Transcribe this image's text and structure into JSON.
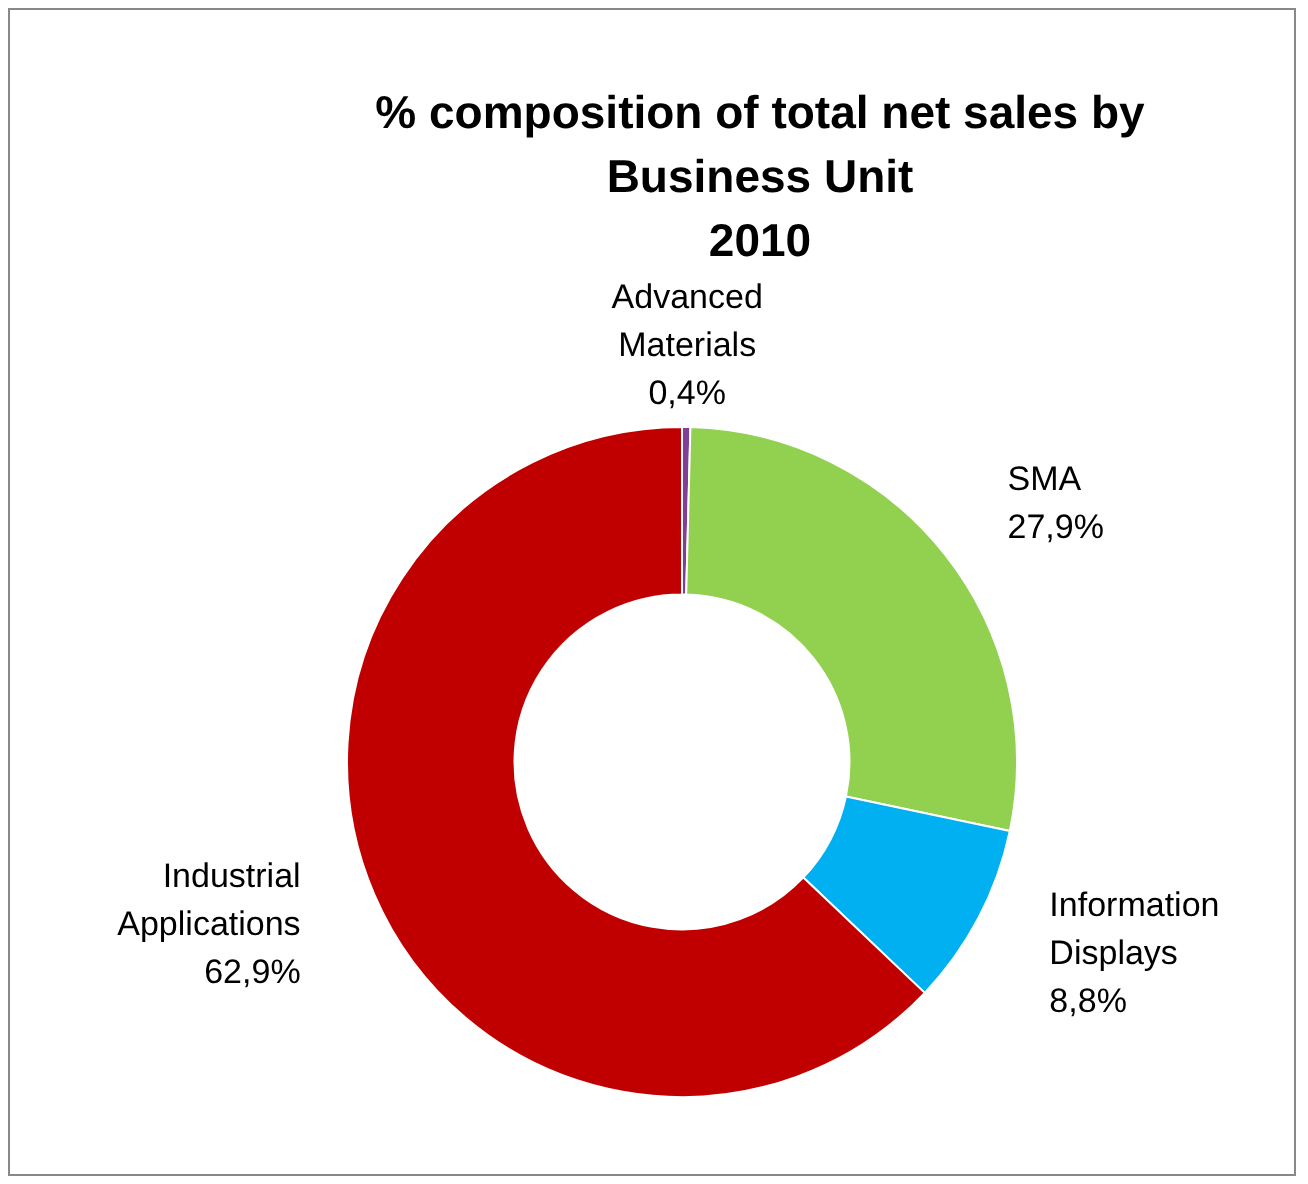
{
  "chart_data": {
    "type": "donut",
    "title": "% composition of total net sales by Business Unit",
    "subtitle": "2010",
    "categories": [
      "Advanced Materials",
      "SMA",
      "Information Displays",
      "Industrial Applications"
    ],
    "values": [
      0.4,
      27.9,
      8.8,
      62.9
    ],
    "colors": [
      "#7f3f98",
      "#92d050",
      "#00b0f0",
      "#c00000"
    ],
    "value_labels": [
      "0,4%",
      "27,9%",
      "8,8%",
      "62,9%"
    ],
    "legend": false
  }
}
